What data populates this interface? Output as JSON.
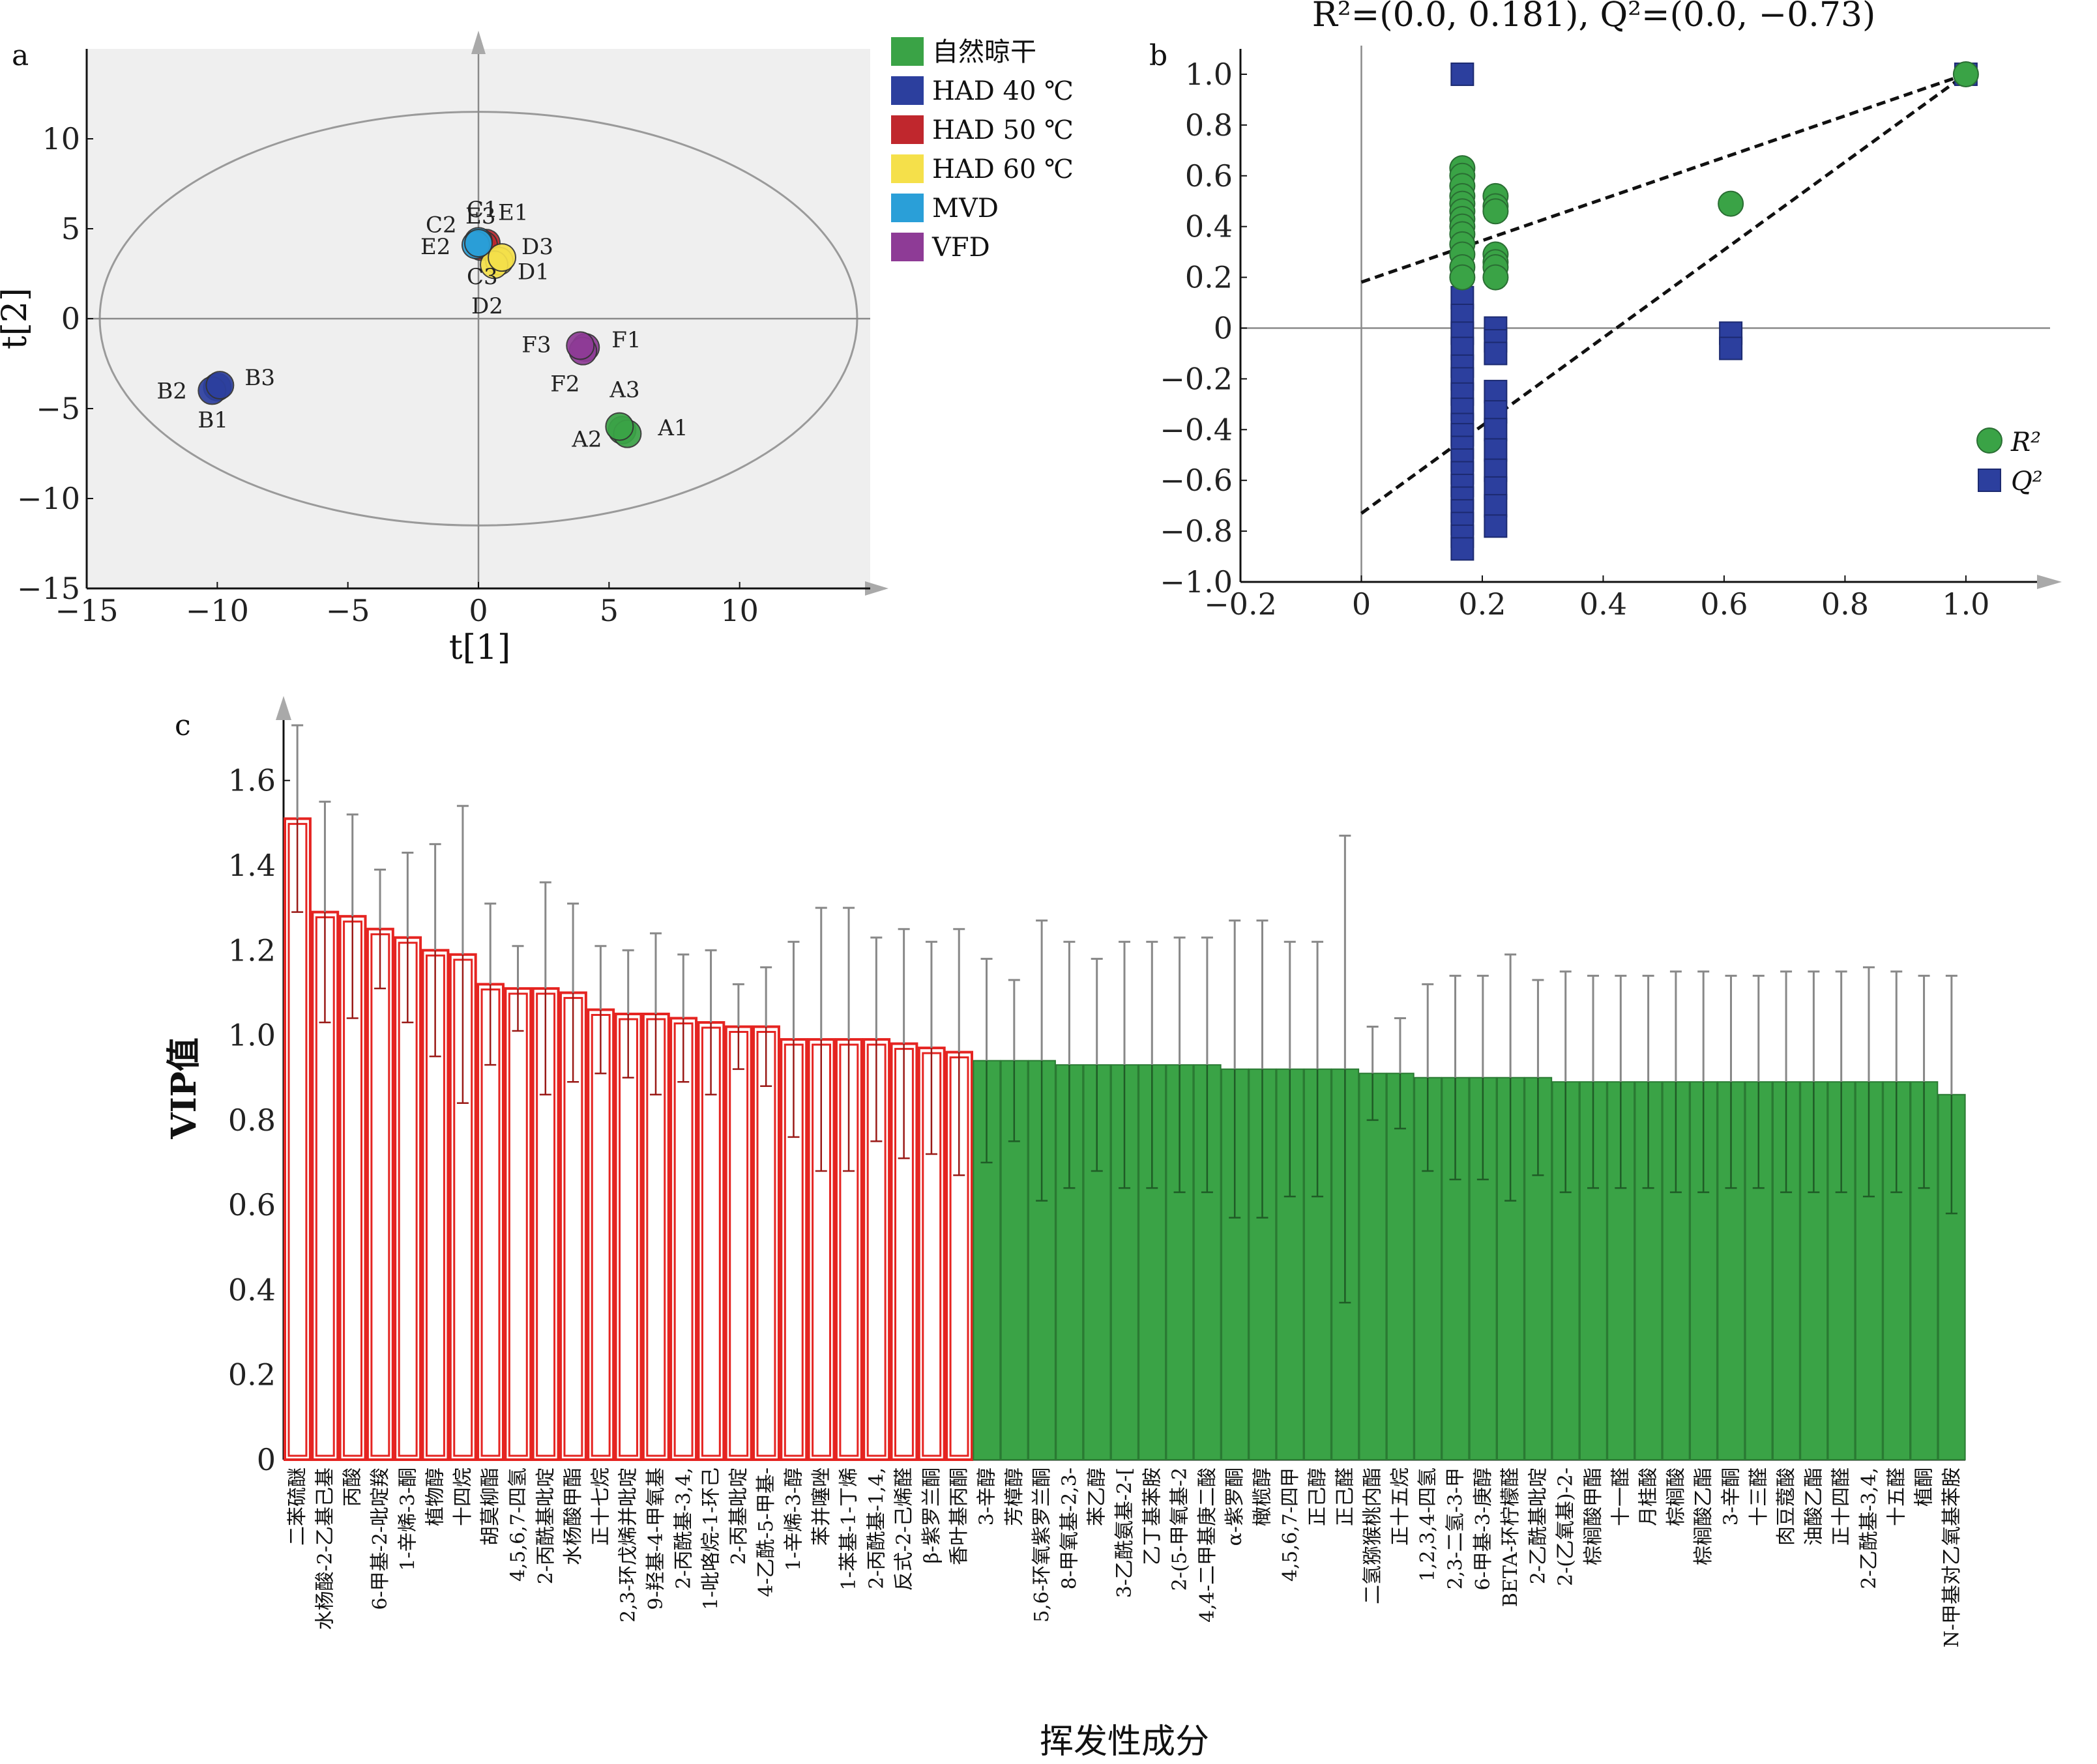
{
  "chart_data": [
    {
      "panel": "a",
      "type": "scatter",
      "xlabel": "t[1]",
      "ylabel": "t[2]",
      "xlim": [
        -15,
        15
      ],
      "ylim": [
        -15,
        15
      ],
      "xticks": [
        -15,
        -10,
        -5,
        0,
        5,
        10
      ],
      "yticks": [
        10,
        5,
        0,
        -5,
        -10,
        -15
      ],
      "grid": false,
      "legend": "right",
      "ellipse": {
        "cx": 0,
        "cy": 0,
        "rx": 14.5,
        "ry": 11.5
      },
      "series": [
        {
          "name": "自然晾干",
          "color": "#3aa346",
          "points": [
            {
              "x": 5.5,
              "y": -6.2,
              "label": "A1"
            },
            {
              "x": 5.7,
              "y": -6.4,
              "label": "A2"
            },
            {
              "x": 5.4,
              "y": -6.0,
              "label": "A3"
            }
          ]
        },
        {
          "name": "HAD 40 ℃",
          "color": "#2c3f9e",
          "points": [
            {
              "x": -10.0,
              "y": -3.8,
              "label": "B1"
            },
            {
              "x": -10.2,
              "y": -4.0,
              "label": "B2"
            },
            {
              "x": -9.9,
              "y": -3.7,
              "label": "B3"
            }
          ]
        },
        {
          "name": "HAD 50 ℃",
          "color": "#c0272d",
          "points": [
            {
              "x": 0.3,
              "y": 4.2,
              "label": "C1"
            },
            {
              "x": 0.1,
              "y": 4.0,
              "label": "C2"
            },
            {
              "x": 0.2,
              "y": 4.1,
              "label": "C3"
            }
          ]
        },
        {
          "name": "HAD 60 ℃",
          "color": "#f5e04a",
          "points": [
            {
              "x": 0.8,
              "y": 3.2,
              "label": "D1"
            },
            {
              "x": 0.6,
              "y": 3.0,
              "label": "D2"
            },
            {
              "x": 0.9,
              "y": 3.4,
              "label": "D3"
            }
          ]
        },
        {
          "name": "MVD",
          "color": "#2a9fd8",
          "points": [
            {
              "x": 0.0,
              "y": 4.3,
              "label": "E1"
            },
            {
              "x": -0.1,
              "y": 4.1,
              "label": "E2"
            },
            {
              "x": 0.0,
              "y": 4.2,
              "label": "E3"
            }
          ]
        },
        {
          "name": "VFD",
          "color": "#8e3b96",
          "points": [
            {
              "x": 4.1,
              "y": -1.6,
              "label": "F1"
            },
            {
              "x": 4.0,
              "y": -1.8,
              "label": "F2"
            },
            {
              "x": 3.9,
              "y": -1.5,
              "label": "F3"
            }
          ]
        }
      ]
    },
    {
      "panel": "b",
      "type": "scatter",
      "title": "R²=(0.0, 0.181), Q²=(0.0, −0.73)",
      "xlim": [
        -0.2,
        1.15
      ],
      "ylim": [
        -1.0,
        1.1
      ],
      "xticks": [
        -0.2,
        0,
        0.2,
        0.4,
        0.6,
        0.8,
        1.0
      ],
      "yticks": [
        1.0,
        0.8,
        0.6,
        0.4,
        0.2,
        0,
        -0.2,
        -0.4,
        -0.6,
        -0.8,
        -1.0
      ],
      "legend": "bottom-right",
      "series": [
        {
          "name": "R²",
          "color": "#3aa346",
          "marker": "circle",
          "x": [
            0.167,
            0.167,
            0.167,
            0.167,
            0.167,
            0.167,
            0.167,
            0.167,
            0.167,
            0.167,
            0.167,
            0.167,
            0.167,
            0.222,
            0.222,
            0.222,
            0.222,
            0.222,
            0.222,
            0.222,
            0.611,
            1.0
          ],
          "y": [
            0.63,
            0.6,
            0.56,
            0.52,
            0.49,
            0.46,
            0.43,
            0.4,
            0.37,
            0.33,
            0.29,
            0.24,
            0.2,
            0.52,
            0.48,
            0.46,
            0.29,
            0.26,
            0.24,
            0.2,
            0.49,
            1.0
          ]
        },
        {
          "name": "Q²",
          "color": "#2c3f9e",
          "marker": "square",
          "x": [
            0.167,
            0.167,
            0.167,
            0.167,
            0.167,
            0.167,
            0.167,
            0.167,
            0.167,
            0.167,
            0.167,
            0.167,
            0.167,
            0.167,
            0.167,
            0.167,
            0.167,
            0.167,
            0.167,
            0.167,
            0.222,
            0.222,
            0.222,
            0.222,
            0.222,
            0.222,
            0.222,
            0.222,
            0.222,
            0.222,
            0.222,
            0.611,
            0.611,
            1.0
          ],
          "y": [
            1.0,
            0.12,
            0.05,
            -0.02,
            -0.08,
            -0.15,
            -0.2,
            -0.26,
            -0.32,
            -0.38,
            -0.42,
            -0.47,
            -0.52,
            -0.57,
            -0.62,
            -0.67,
            -0.72,
            -0.77,
            -0.82,
            -0.87,
            0.0,
            -0.05,
            -0.1,
            -0.25,
            -0.33,
            -0.4,
            -0.48,
            -0.56,
            -0.63,
            -0.7,
            -0.78,
            -0.02,
            -0.08,
            1.0
          ]
        }
      ],
      "regression_lines": [
        {
          "name": "R²",
          "x": [
            0.0,
            1.0
          ],
          "y": [
            0.181,
            1.0
          ]
        },
        {
          "name": "Q²",
          "x": [
            0.0,
            1.0
          ],
          "y": [
            -0.73,
            1.0
          ]
        }
      ]
    },
    {
      "panel": "c",
      "type": "bar",
      "xlabel": "挥发性成分",
      "ylabel": "VIP值",
      "ylim": [
        0,
        1.75
      ],
      "yticks": [
        1.6,
        1.4,
        1.2,
        1.0,
        0.8,
        0.6,
        0.4,
        0.2,
        0
      ],
      "colors": {
        "above_one": "#e52421",
        "below_one": "#3aa346"
      },
      "categories": [
        "二苯硫醚",
        "水杨酸-2-乙基己基",
        "丙酸",
        "6-甲基-2-吡啶羧",
        "1-辛烯-3-酮",
        "植物醇",
        "十四烷",
        "胡莫柳酯",
        "4,5,6,7-四氢",
        "2-丙酰基吡啶",
        "水杨酸甲酯",
        "正十七烷",
        "2,3-环戊烯并吡啶",
        "9-羟基-4-甲氧基",
        "2-丙酰基-3,4,",
        "1-吡咯烷-1-环己",
        "2-丙基吡啶",
        "4-乙酰-5-甲基-",
        "1-辛烯-3-醇",
        "苯并噻唑",
        "1-苯基-1-丁烯",
        "2-丙酰基-1,4,",
        "反式-2-己烯醛",
        "β-紫罗兰酮",
        "香叶基丙酮",
        "3-辛醇",
        "芳樟醇",
        "5,6-环氧紫罗兰酮",
        "8-甲氧基-2,3-",
        "苯乙醇",
        "3-乙酰氨基-2-[",
        "乙丁基苯胺",
        "2-(5-甲氧基-2",
        "4,4-二甲基庚二酸",
        "α-紫罗酮",
        "橄榄醇",
        "4,5,6,7-四甲",
        "正己醇",
        "正己醛",
        "二氢猕猴桃内酯",
        "正十五烷",
        "1,2,3,4-四氢",
        "2,3-二氢-3-甲",
        "6-甲基-3-庚醇",
        "BETA-环柠檬醛",
        "2-乙酰基吡啶",
        "2-(乙氧基)-2-",
        "棕榈酸甲酯",
        "十一醛",
        "月桂酸",
        "棕榈酸",
        "棕榈酸乙酯",
        "3-辛酮",
        "十三醛",
        "肉豆蔻酸",
        "油酸乙酯",
        "正十四醛",
        "2-乙酰基-3,4,",
        "十五醛",
        "植酮",
        "N-甲基对乙氧基苯胺"
      ],
      "values": [
        1.51,
        1.29,
        1.28,
        1.25,
        1.23,
        1.2,
        1.19,
        1.12,
        1.11,
        1.11,
        1.1,
        1.06,
        1.05,
        1.05,
        1.04,
        1.03,
        1.02,
        1.02,
        0.99,
        0.99,
        0.99,
        0.99,
        0.98,
        0.97,
        0.96,
        0.94,
        0.94,
        0.94,
        0.93,
        0.93,
        0.93,
        0.93,
        0.93,
        0.93,
        0.92,
        0.92,
        0.92,
        0.92,
        0.92,
        0.91,
        0.91,
        0.9,
        0.9,
        0.9,
        0.9,
        0.9,
        0.89,
        0.89,
        0.89,
        0.89,
        0.89,
        0.89,
        0.89,
        0.89,
        0.89,
        0.89,
        0.89,
        0.89,
        0.89,
        0.89,
        0.86
      ],
      "errors": [
        0.22,
        0.26,
        0.24,
        0.14,
        0.2,
        0.25,
        0.35,
        0.19,
        0.1,
        0.25,
        0.21,
        0.15,
        0.15,
        0.19,
        0.15,
        0.17,
        0.1,
        0.14,
        0.23,
        0.31,
        0.31,
        0.24,
        0.27,
        0.25,
        0.29,
        0.24,
        0.19,
        0.33,
        0.29,
        0.25,
        0.29,
        0.29,
        0.3,
        0.3,
        0.35,
        0.35,
        0.3,
        0.3,
        0.55,
        0.11,
        0.13,
        0.22,
        0.24,
        0.24,
        0.29,
        0.23,
        0.26,
        0.25,
        0.25,
        0.25,
        0.26,
        0.26,
        0.25,
        0.25,
        0.26,
        0.26,
        0.26,
        0.27,
        0.26,
        0.25,
        0.28
      ]
    }
  ]
}
